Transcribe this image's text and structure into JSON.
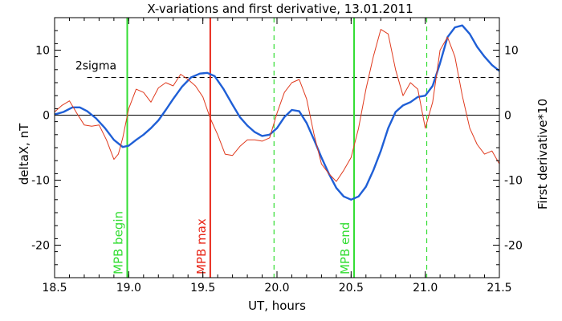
{
  "chart_data": {
    "type": "line",
    "title": "X-variations and first derivative, 13.01.2011",
    "xlabel": "UT, hours",
    "ylabel_left": "deltaX, nT",
    "ylabel_right": "First derivative*10",
    "xlim": [
      18.5,
      21.5
    ],
    "ylim": [
      -25,
      15
    ],
    "xticks": [
      18.5,
      19.0,
      19.5,
      20.0,
      20.5,
      21.0,
      21.5
    ],
    "xtick_labels": [
      "18.5",
      "19.0",
      "19.5",
      "20.0",
      "20.5",
      "21.0",
      "21.5"
    ],
    "yticks": [
      -20,
      -10,
      0,
      10
    ],
    "ytick_labels": [
      "-20",
      "-10",
      "0",
      "10"
    ],
    "sigma_label": "2sigma",
    "sigma_level": 5.8,
    "colors": {
      "deltaX": "#1f5fd6",
      "derivative": "#e03a1e",
      "mpb_edge": "#33dd33",
      "mpb_max": "#e8281a",
      "dashed_marker": "#33dd33",
      "axes": "#000000"
    },
    "markers": [
      {
        "x": 18.99,
        "label": "MPB begin",
        "kind": "mpb_edge",
        "style": "solid"
      },
      {
        "x": 19.55,
        "label": "MPB max",
        "kind": "mpb_max",
        "style": "solid"
      },
      {
        "x": 19.98,
        "label": "",
        "kind": "dashed_marker",
        "style": "dashed"
      },
      {
        "x": 20.52,
        "label": "MPB end",
        "kind": "mpb_edge",
        "style": "solid"
      },
      {
        "x": 21.01,
        "label": "",
        "kind": "dashed_marker",
        "style": "dashed"
      }
    ],
    "series": [
      {
        "name": "deltaX",
        "axis": "left",
        "x": [
          18.5,
          18.56,
          18.62,
          18.67,
          18.72,
          18.78,
          18.84,
          18.9,
          18.96,
          19.0,
          19.05,
          19.1,
          19.15,
          19.2,
          19.25,
          19.3,
          19.36,
          19.42,
          19.48,
          19.53,
          19.58,
          19.64,
          19.7,
          19.75,
          19.8,
          19.85,
          19.9,
          19.95,
          20.0,
          20.05,
          20.1,
          20.15,
          20.2,
          20.25,
          20.3,
          20.35,
          20.4,
          20.45,
          20.5,
          20.55,
          20.6,
          20.65,
          20.7,
          20.75,
          20.8,
          20.85,
          20.9,
          20.95,
          21.0,
          21.05,
          21.1,
          21.15,
          21.2,
          21.25,
          21.3,
          21.35,
          21.4,
          21.45,
          21.5
        ],
        "y": [
          0.1,
          0.5,
          1.2,
          1.2,
          0.6,
          -0.5,
          -2.0,
          -3.8,
          -4.9,
          -4.7,
          -3.8,
          -3.0,
          -2.0,
          -0.8,
          0.8,
          2.5,
          4.4,
          5.8,
          6.4,
          6.5,
          6.0,
          4.0,
          1.6,
          -0.3,
          -1.6,
          -2.6,
          -3.2,
          -3.0,
          -2.0,
          -0.3,
          0.8,
          0.6,
          -1.2,
          -3.8,
          -6.5,
          -9.0,
          -11.2,
          -12.5,
          -13.0,
          -12.5,
          -11.0,
          -8.5,
          -5.5,
          -2.0,
          0.5,
          1.5,
          2.0,
          2.8,
          3.0,
          4.5,
          8.0,
          12.0,
          13.5,
          13.8,
          12.5,
          10.5,
          9.0,
          7.7,
          6.8
        ]
      },
      {
        "name": "First derivative*10",
        "axis": "right",
        "x": [
          18.5,
          18.55,
          18.6,
          18.65,
          18.7,
          18.75,
          18.8,
          18.85,
          18.9,
          18.93,
          18.96,
          19.0,
          19.05,
          19.1,
          19.15,
          19.2,
          19.25,
          19.3,
          19.35,
          19.4,
          19.45,
          19.5,
          19.55,
          19.6,
          19.65,
          19.7,
          19.75,
          19.8,
          19.85,
          19.9,
          19.95,
          20.0,
          20.05,
          20.1,
          20.15,
          20.2,
          20.25,
          20.3,
          20.35,
          20.4,
          20.45,
          20.5,
          20.55,
          20.6,
          20.65,
          20.7,
          20.75,
          20.8,
          20.85,
          20.9,
          20.95,
          21.0,
          21.05,
          21.1,
          21.15,
          21.2,
          21.25,
          21.3,
          21.35,
          21.4,
          21.45,
          21.5
        ],
        "y": [
          0.5,
          1.5,
          2.2,
          0.3,
          -1.5,
          -1.7,
          -1.5,
          -3.8,
          -6.8,
          -6.0,
          -3.5,
          1.0,
          4.0,
          3.5,
          2.0,
          4.2,
          5.0,
          4.5,
          6.3,
          5.5,
          4.5,
          2.8,
          -0.5,
          -3.0,
          -6.0,
          -6.2,
          -4.8,
          -3.8,
          -3.8,
          -4.0,
          -3.5,
          0.3,
          3.5,
          5.0,
          5.5,
          2.5,
          -3.0,
          -7.5,
          -9.0,
          -10.2,
          -8.5,
          -6.5,
          -2.0,
          4.0,
          9.0,
          13.2,
          12.5,
          7.0,
          3.0,
          5.0,
          4.0,
          -2.0,
          2.0,
          10.0,
          12.0,
          9.0,
          3.0,
          -2.0,
          -4.5,
          -6.0,
          -5.5,
          -7.5
        ]
      }
    ]
  }
}
